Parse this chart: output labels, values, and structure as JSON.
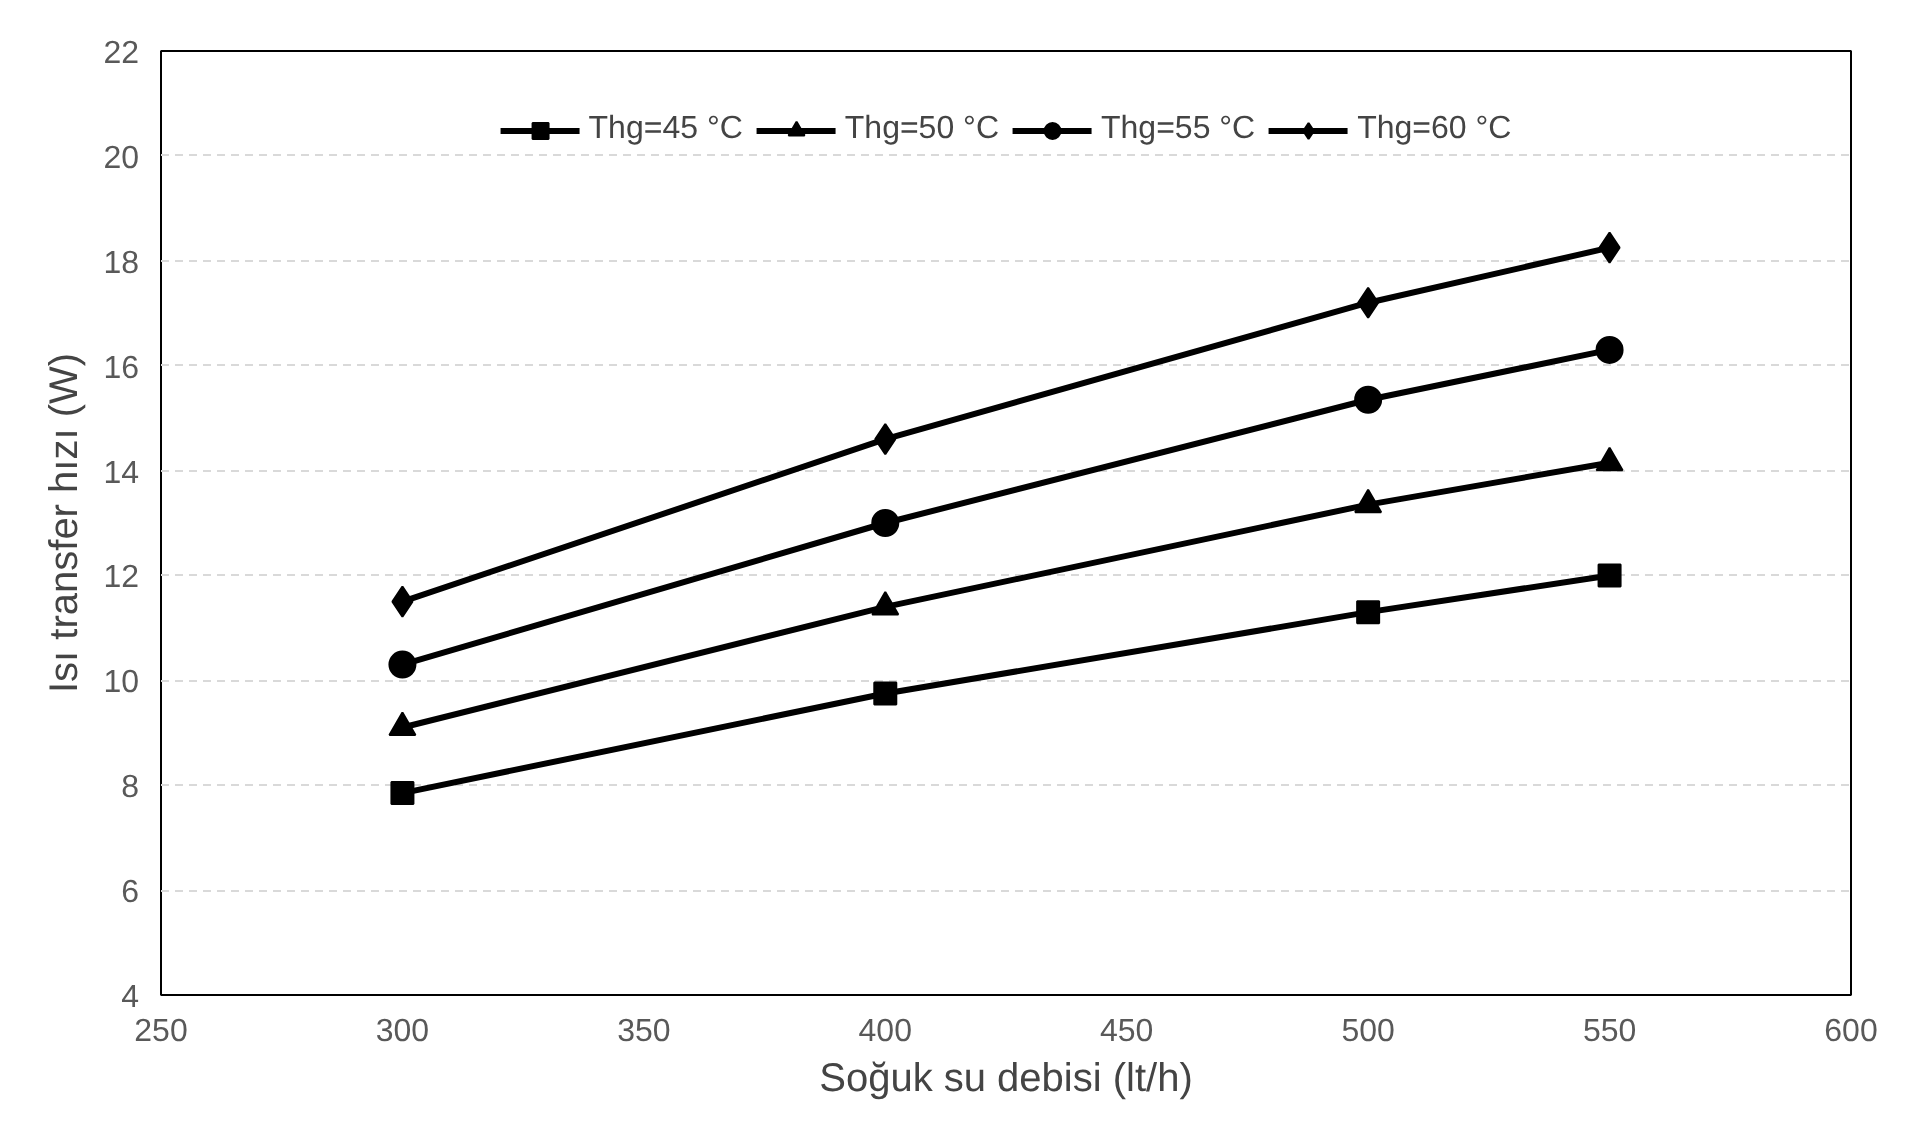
{
  "chart_data": {
    "type": "line",
    "xlabel": "Soğuk su debisi (lt/h)",
    "ylabel": "Isı transfer hızı (W)",
    "x": [
      300,
      400,
      500,
      550
    ],
    "series": [
      {
        "name": "Thg=45 °C",
        "color": "#000000",
        "marker": "square",
        "values": [
          7.85,
          9.75,
          11.3,
          12.0
        ]
      },
      {
        "name": "Thg=50 °C",
        "color": "#000000",
        "marker": "triangle",
        "values": [
          9.1,
          11.4,
          13.35,
          14.15
        ]
      },
      {
        "name": "Thg=55 °C",
        "color": "#000000",
        "marker": "circle",
        "values": [
          10.3,
          13.0,
          15.35,
          16.3
        ]
      },
      {
        "name": "Thg=60 °C",
        "color": "#000000",
        "marker": "diamond",
        "values": [
          11.5,
          14.6,
          17.2,
          18.25
        ]
      }
    ],
    "xlim": [
      250,
      600
    ],
    "xticks": [
      250,
      300,
      350,
      400,
      450,
      500,
      550,
      600
    ],
    "ylim": [
      4,
      22
    ],
    "yticks": [
      4,
      6,
      8,
      10,
      12,
      14,
      16,
      18,
      20,
      22
    ],
    "grid": "y",
    "legend": "top",
    "line_style": "solid"
  }
}
